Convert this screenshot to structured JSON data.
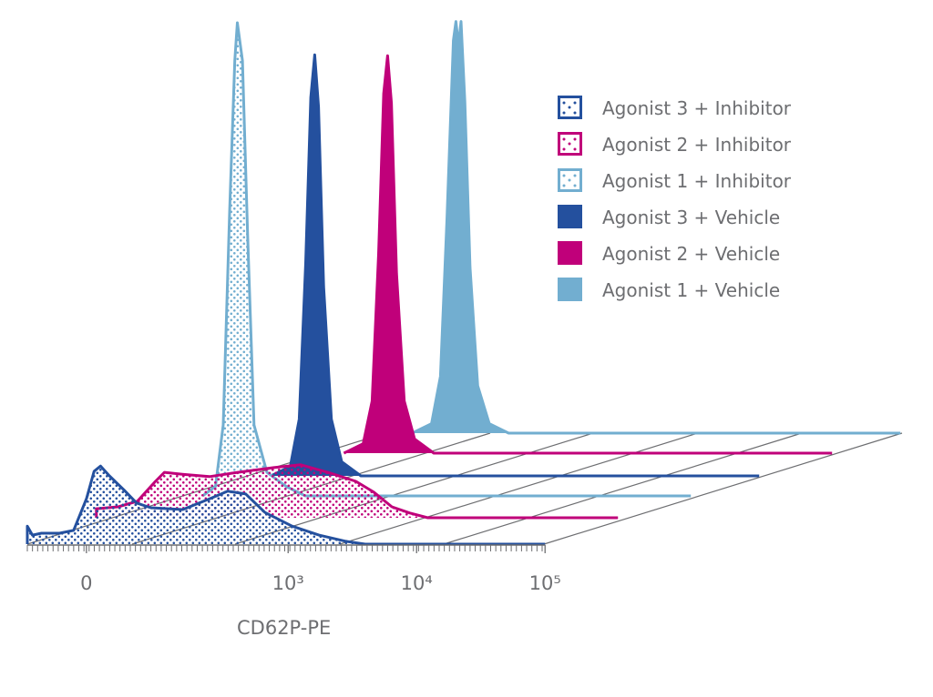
{
  "chart_data": {
    "type": "area",
    "style": "3d-offset-histogram",
    "title": "",
    "xlabel": "CD62P-PE",
    "ylabel": "",
    "x_scale": "logicle (axis units: 10^n at n)",
    "xlim": [
      0.97,
      5
    ],
    "ylim": [
      0,
      100
    ],
    "x_ticks": [
      {
        "label": "0",
        "value": 1.43
      },
      {
        "label": "10³",
        "value": 3
      },
      {
        "label": "10⁴",
        "value": 4
      },
      {
        "label": "10⁵",
        "value": 5
      }
    ],
    "legend_position": "top-right",
    "series": [
      {
        "name": "Agonist 3 + Inhibitor",
        "color": "#24509e",
        "fill": "dotted",
        "points": [
          [
            0.97,
            0
          ],
          [
            0.97,
            3.8
          ],
          [
            1.01,
            1.9
          ],
          [
            1.08,
            2.3
          ],
          [
            1.22,
            2.3
          ],
          [
            1.33,
            2.9
          ],
          [
            1.43,
            9.6
          ],
          [
            1.49,
            15.4
          ],
          [
            1.54,
            16.5
          ],
          [
            1.61,
            14.4
          ],
          [
            1.72,
            11.5
          ],
          [
            1.82,
            8.7
          ],
          [
            1.93,
            7.7
          ],
          [
            2.18,
            7.3
          ],
          [
            2.39,
            9.6
          ],
          [
            2.53,
            11.2
          ],
          [
            2.67,
            10.6
          ],
          [
            2.82,
            6.7
          ],
          [
            3.03,
            3.8
          ],
          [
            3.24,
            1.9
          ],
          [
            3.45,
            0.6
          ],
          [
            3.6,
            0
          ]
        ]
      },
      {
        "name": "Agonist 2 + Inhibitor",
        "color": "#c0007a",
        "fill": "dotted",
        "points": [
          [
            0.94,
            0
          ],
          [
            0.94,
            1.9
          ],
          [
            1.11,
            2.3
          ],
          [
            1.26,
            3.5
          ],
          [
            1.4,
            7.7
          ],
          [
            1.47,
            9.6
          ],
          [
            1.61,
            9.2
          ],
          [
            1.82,
            8.7
          ],
          [
            2.04,
            9.6
          ],
          [
            2.32,
            10.6
          ],
          [
            2.53,
            11.2
          ],
          [
            2.74,
            9.6
          ],
          [
            2.96,
            7.7
          ],
          [
            3.1,
            5.4
          ],
          [
            3.24,
            2.3
          ],
          [
            3.38,
            1.0
          ],
          [
            3.52,
            0
          ]
        ]
      },
      {
        "name": "Agonist 1 + Inhibitor",
        "color": "#72aed0",
        "fill": "dotted",
        "points": [
          [
            1.2,
            0
          ],
          [
            1.3,
            2
          ],
          [
            1.36,
            15
          ],
          [
            1.41,
            60
          ],
          [
            1.45,
            92
          ],
          [
            1.47,
            100
          ],
          [
            1.49,
            96
          ],
          [
            1.51,
            92
          ],
          [
            1.55,
            55
          ],
          [
            1.6,
            15
          ],
          [
            1.7,
            5
          ],
          [
            1.85,
            2
          ],
          [
            2.0,
            0
          ]
        ]
      },
      {
        "name": "Agonist 3 + Vehicle",
        "color": "#24509e",
        "fill": "solid",
        "points": [
          [
            1.2,
            0
          ],
          [
            1.35,
            2
          ],
          [
            1.42,
            12
          ],
          [
            1.47,
            45
          ],
          [
            1.51,
            80
          ],
          [
            1.54,
            89
          ],
          [
            1.57,
            78
          ],
          [
            1.61,
            40
          ],
          [
            1.67,
            12
          ],
          [
            1.75,
            3
          ],
          [
            1.9,
            0
          ]
        ]
      },
      {
        "name": "Agonist 2 + Vehicle",
        "color": "#c0007a",
        "fill": "solid",
        "points": [
          [
            1.2,
            0
          ],
          [
            1.35,
            2
          ],
          [
            1.42,
            11
          ],
          [
            1.47,
            42
          ],
          [
            1.51,
            76
          ],
          [
            1.54,
            84
          ],
          [
            1.57,
            74
          ],
          [
            1.61,
            38
          ],
          [
            1.67,
            11
          ],
          [
            1.75,
            3
          ],
          [
            1.9,
            0
          ]
        ]
      },
      {
        "name": "Agonist 1 + Vehicle",
        "color": "#72aed0",
        "fill": "solid",
        "points": [
          [
            1.2,
            0
          ],
          [
            1.35,
            2
          ],
          [
            1.42,
            12
          ],
          [
            1.47,
            45
          ],
          [
            1.52,
            83
          ],
          [
            1.54,
            87
          ],
          [
            1.56,
            82
          ],
          [
            1.58,
            87
          ],
          [
            1.61,
            70
          ],
          [
            1.65,
            35
          ],
          [
            1.71,
            10
          ],
          [
            1.8,
            2
          ],
          [
            1.95,
            0
          ]
        ]
      }
    ]
  }
}
